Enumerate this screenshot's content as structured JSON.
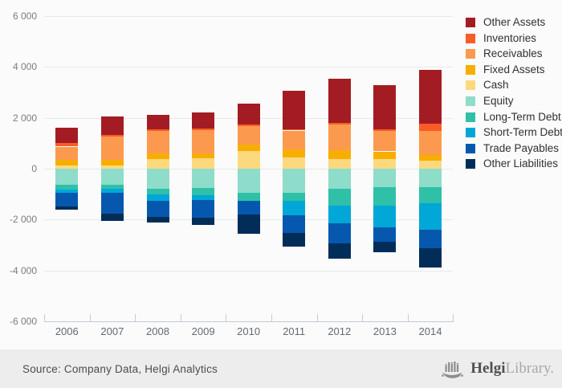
{
  "chart_data": {
    "type": "bar",
    "stacked": true,
    "title": "",
    "categories": [
      "2006",
      "2007",
      "2008",
      "2009",
      "2010",
      "2011",
      "2012",
      "2013",
      "2014"
    ],
    "series": [
      {
        "name": "Other Assets",
        "color": "#a41c23",
        "values": [
          600,
          730,
          575,
          630,
          820,
          1490,
          1755,
          1760,
          2120
        ]
      },
      {
        "name": "Inventories",
        "color": "#f85c27",
        "values": [
          130,
          60,
          60,
          40,
          70,
          60,
          60,
          50,
          295
        ]
      },
      {
        "name": "Receivables",
        "color": "#fb9a4f",
        "values": [
          530,
          920,
          885,
          930,
          715,
          745,
          1020,
          810,
          945
        ]
      },
      {
        "name": "Fixed Assets",
        "color": "#f8ae00",
        "values": [
          220,
          215,
          220,
          180,
          260,
          315,
          345,
          295,
          210
        ]
      },
      {
        "name": "Cash",
        "color": "#fcd97f",
        "values": [
          120,
          125,
          380,
          420,
          685,
          440,
          370,
          385,
          320
        ]
      },
      {
        "name": "Equity",
        "color": "#8edcca",
        "values": [
          -630,
          -630,
          -790,
          -755,
          -960,
          -945,
          -790,
          -715,
          -735
        ]
      },
      {
        "name": "Long-Term Debt",
        "color": "#2fc0a8",
        "values": [
          -190,
          -160,
          -220,
          -295,
          -315,
          -315,
          -660,
          -735,
          -610
        ]
      },
      {
        "name": "Short-Term Debt",
        "color": "#00a7d7",
        "values": [
          -130,
          -160,
          -250,
          -180,
          0,
          -575,
          -700,
          -860,
          -1050
        ]
      },
      {
        "name": "Trade Payables",
        "color": "#0558ae",
        "values": [
          -520,
          -830,
          -640,
          -695,
          -535,
          -685,
          -790,
          -575,
          -740
        ]
      },
      {
        "name": "Other Liabilities",
        "color": "#032d59",
        "values": [
          -130,
          -270,
          -220,
          -275,
          -740,
          -530,
          -610,
          -415,
          -755
        ]
      }
    ],
    "ylim": [
      -6000,
      6000
    ],
    "ytick_step": 2000,
    "yticks": [
      6000,
      4000,
      2000,
      0,
      -2000,
      -4000,
      -6000
    ],
    "ytick_labels": [
      "6 000",
      "4 000",
      "2 000",
      "0",
      "-2 000",
      "-4 000",
      "-6 000"
    ],
    "xlabel": "",
    "ylabel": "",
    "grid": true,
    "legend_position": "right"
  },
  "footer": {
    "source_text": "Source: Company Data, Helgi Analytics",
    "logo": {
      "icon": "helgi-ship-icon",
      "brand_bold": "Helgi",
      "brand_light": "Library."
    }
  }
}
